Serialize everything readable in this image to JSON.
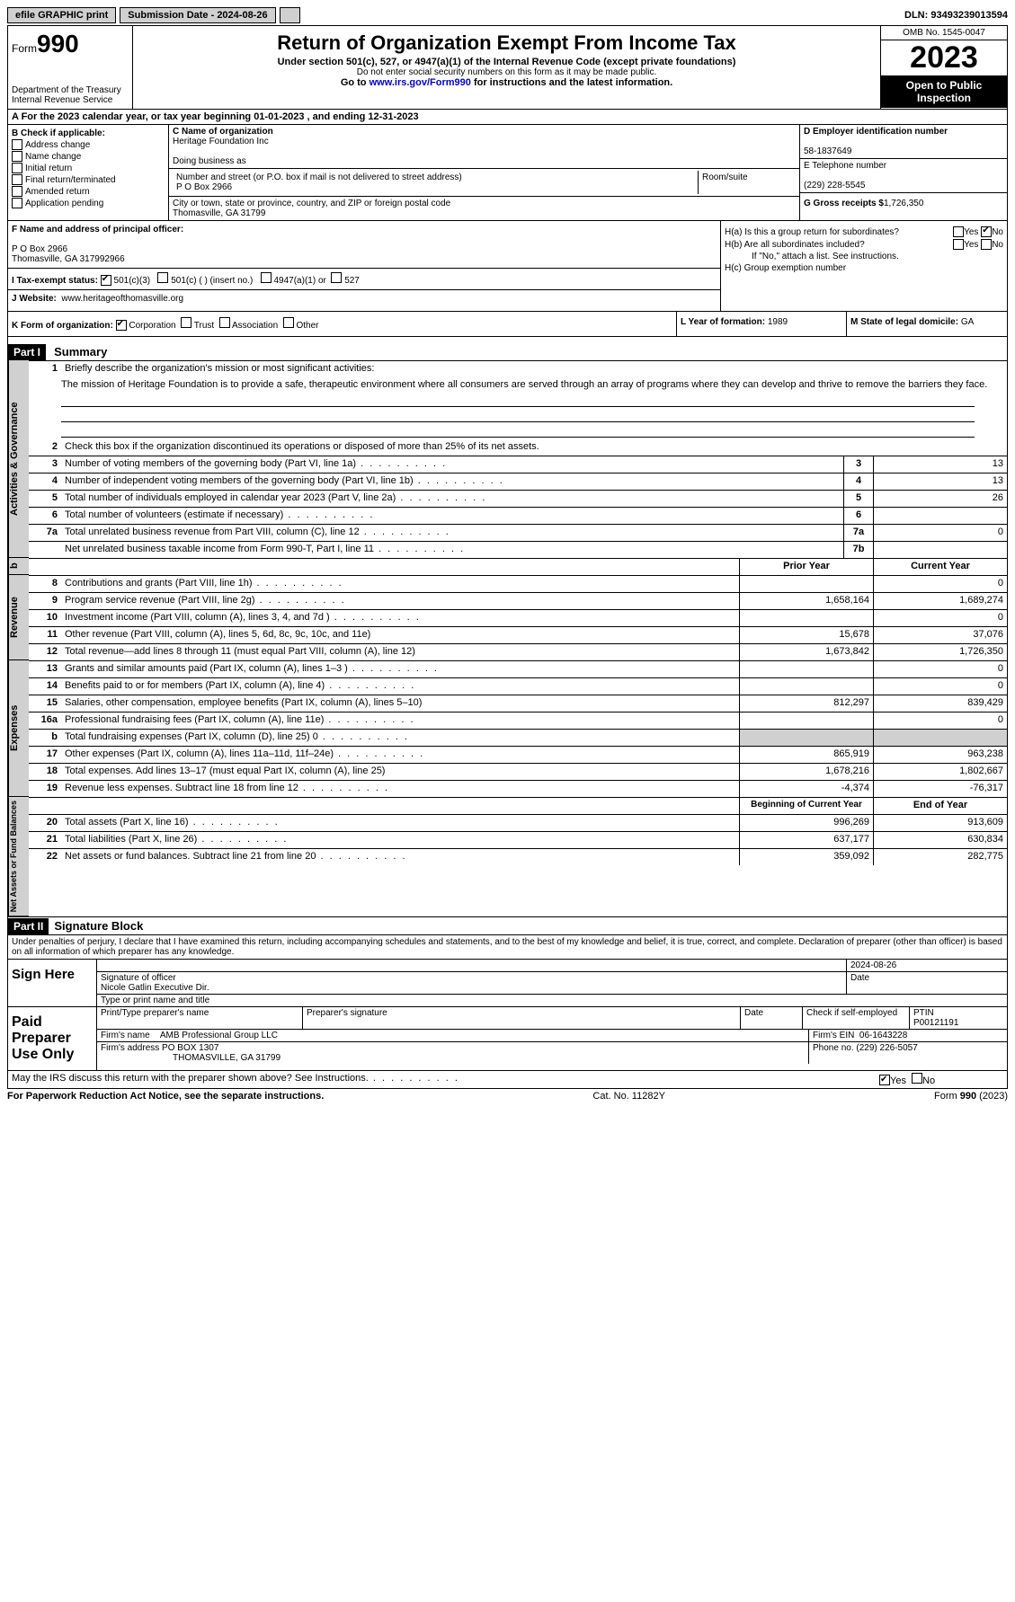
{
  "topbar": {
    "efile": "efile GRAPHIC print",
    "submission_label": "Submission Date - 2024-08-26",
    "dln": "DLN: 93493239013594"
  },
  "header": {
    "form_label": "Form",
    "form_num": "990",
    "dept": "Department of the Treasury\nInternal Revenue Service",
    "title": "Return of Organization Exempt From Income Tax",
    "sub1": "Under section 501(c), 527, or 4947(a)(1) of the Internal Revenue Code (except private foundations)",
    "sub2": "Do not enter social security numbers on this form as it may be made public.",
    "sub3_pre": "Go to ",
    "sub3_link": "www.irs.gov/Form990",
    "sub3_post": " for instructions and the latest information.",
    "omb": "OMB No. 1545-0047",
    "year": "2023",
    "open": "Open to Public Inspection"
  },
  "rowA": "A For the 2023 calendar year, or tax year beginning 01-01-2023    , and ending 12-31-2023",
  "boxB": {
    "title": "B Check if applicable:",
    "items": [
      "Address change",
      "Name change",
      "Initial return",
      "Final return/terminated",
      "Amended return",
      "Application pending"
    ]
  },
  "boxC": {
    "name_label": "C Name of organization",
    "name": "Heritage Foundation Inc",
    "dba_label": "Doing business as",
    "addr_label": "Number and street (or P.O. box if mail is not delivered to street address)",
    "room_label": "Room/suite",
    "addr": "P O Box 2966",
    "city_label": "City or town, state or province, country, and ZIP or foreign postal code",
    "city": "Thomasville, GA  31799"
  },
  "boxD": {
    "label": "D Employer identification number",
    "ein": "58-1837649",
    "tel_label": "E Telephone number",
    "tel": "(229) 228-5545",
    "gross_label": "G Gross receipts $",
    "gross": "1,726,350"
  },
  "boxF": {
    "label": "F  Name and address of principal officer:",
    "line1": "P O Box 2966",
    "line2": "Thomasville, GA  317992966"
  },
  "boxH": {
    "a": "H(a)  Is this a group return for subordinates?",
    "b": "H(b)  Are all subordinates included?",
    "b_note": "If \"No,\" attach a list. See instructions.",
    "c": "H(c)  Group exemption number",
    "yes": "Yes",
    "no": "No"
  },
  "rowI": {
    "label": "I   Tax-exempt status:",
    "o1": "501(c)(3)",
    "o2": "501(c) (  ) (insert no.)",
    "o3": "4947(a)(1) or",
    "o4": "527"
  },
  "rowJ": {
    "label": "J   Website:",
    "val": "www.heritageofthomasville.org"
  },
  "rowK": {
    "label": "K Form of organization:",
    "o1": "Corporation",
    "o2": "Trust",
    "o3": "Association",
    "o4": "Other"
  },
  "rowL": {
    "label": "L Year of formation:",
    "val": "1989"
  },
  "rowM": {
    "label": "M State of legal domicile:",
    "val": "GA"
  },
  "part1": {
    "header": "Part I",
    "title": "Summary"
  },
  "summary": {
    "l1_label": "Briefly describe the organization's mission or most significant activities:",
    "l1_text": "The mission of Heritage Foundation is to provide a safe, therapeutic environment where all consumers are served through an array of programs where they can develop and thrive to remove the barriers they face.",
    "l2": "Check this box      if the organization discontinued its operations or disposed of more than 25% of its net assets.",
    "lines_top": [
      {
        "n": "3",
        "d": "Number of voting members of the governing body (Part VI, line 1a)",
        "box": "3",
        "v": "13"
      },
      {
        "n": "4",
        "d": "Number of independent voting members of the governing body (Part VI, line 1b)",
        "box": "4",
        "v": "13"
      },
      {
        "n": "5",
        "d": "Total number of individuals employed in calendar year 2023 (Part V, line 2a)",
        "box": "5",
        "v": "26"
      },
      {
        "n": "6",
        "d": "Total number of volunteers (estimate if necessary)",
        "box": "6",
        "v": ""
      },
      {
        "n": "7a",
        "d": "Total unrelated business revenue from Part VIII, column (C), line 12",
        "box": "7a",
        "v": "0"
      },
      {
        "n": "",
        "d": "Net unrelated business taxable income from Form 990-T, Part I, line 11",
        "box": "7b",
        "v": ""
      }
    ],
    "col_prior": "Prior Year",
    "col_current": "Current Year",
    "revenue": [
      {
        "n": "8",
        "d": "Contributions and grants (Part VIII, line 1h)",
        "p": "",
        "c": "0"
      },
      {
        "n": "9",
        "d": "Program service revenue (Part VIII, line 2g)",
        "p": "1,658,164",
        "c": "1,689,274"
      },
      {
        "n": "10",
        "d": "Investment income (Part VIII, column (A), lines 3, 4, and 7d )",
        "p": "",
        "c": "0"
      },
      {
        "n": "11",
        "d": "Other revenue (Part VIII, column (A), lines 5, 6d, 8c, 9c, 10c, and 11e)",
        "p": "15,678",
        "c": "37,076"
      },
      {
        "n": "12",
        "d": "Total revenue—add lines 8 through 11 (must equal Part VIII, column (A), line 12)",
        "p": "1,673,842",
        "c": "1,726,350"
      }
    ],
    "expenses": [
      {
        "n": "13",
        "d": "Grants and similar amounts paid (Part IX, column (A), lines 1–3 )",
        "p": "",
        "c": "0"
      },
      {
        "n": "14",
        "d": "Benefits paid to or for members (Part IX, column (A), line 4)",
        "p": "",
        "c": "0"
      },
      {
        "n": "15",
        "d": "Salaries, other compensation, employee benefits (Part IX, column (A), lines 5–10)",
        "p": "812,297",
        "c": "839,429"
      },
      {
        "n": "16a",
        "d": "Professional fundraising fees (Part IX, column (A), line 11e)",
        "p": "",
        "c": "0"
      },
      {
        "n": "b",
        "d": "Total fundraising expenses (Part IX, column (D), line 25) 0",
        "p": "gray",
        "c": "gray"
      },
      {
        "n": "17",
        "d": "Other expenses (Part IX, column (A), lines 11a–11d, 11f–24e)",
        "p": "865,919",
        "c": "963,238"
      },
      {
        "n": "18",
        "d": "Total expenses. Add lines 13–17 (must equal Part IX, column (A), line 25)",
        "p": "1,678,216",
        "c": "1,802,667"
      },
      {
        "n": "19",
        "d": "Revenue less expenses. Subtract line 18 from line 12",
        "p": "-4,374",
        "c": "-76,317"
      }
    ],
    "col_begin": "Beginning of Current Year",
    "col_end": "End of Year",
    "netassets": [
      {
        "n": "20",
        "d": "Total assets (Part X, line 16)",
        "p": "996,269",
        "c": "913,609"
      },
      {
        "n": "21",
        "d": "Total liabilities (Part X, line 26)",
        "p": "637,177",
        "c": "630,834"
      },
      {
        "n": "22",
        "d": "Net assets or fund balances. Subtract line 21 from line 20",
        "p": "359,092",
        "c": "282,775"
      }
    ],
    "tab_ag": "Activities & Governance",
    "tab_rev": "Revenue",
    "tab_exp": "Expenses",
    "tab_net": "Net Assets or Fund Balances"
  },
  "part2": {
    "header": "Part II",
    "title": "Signature Block"
  },
  "declaration": "Under penalties of perjury, I declare that I have examined this return, including accompanying schedules and statements, and to the best of my knowledge and belief, it is true, correct, and complete. Declaration of preparer (other than officer) is based on all information of which preparer has any knowledge.",
  "sign": {
    "here": "Sign Here",
    "sig_officer": "Signature of officer",
    "officer_name": "Nicole Gatlin  Executive Dir.",
    "type_name": "Type or print name and title",
    "date_label": "Date",
    "date": "2024-08-26"
  },
  "preparer": {
    "title": "Paid Preparer Use Only",
    "print_label": "Print/Type preparer's name",
    "sig_label": "Preparer's signature",
    "check_label": "Check        if self-employed",
    "ptin_label": "PTIN",
    "ptin": "P00121191",
    "firm_name_label": "Firm's name",
    "firm_name": "AMB Professional Group LLC",
    "firm_ein_label": "Firm's EIN",
    "firm_ein": "06-1643228",
    "firm_addr_label": "Firm's address",
    "firm_addr1": "PO BOX 1307",
    "firm_addr2": "THOMASVILLE, GA  31799",
    "phone_label": "Phone no.",
    "phone": "(229) 226-5057"
  },
  "may_discuss": "May the IRS discuss this return with the preparer shown above? See Instructions.",
  "footer": {
    "left": "For Paperwork Reduction Act Notice, see the separate instructions.",
    "mid": "Cat. No. 11282Y",
    "right": "Form 990 (2023)"
  }
}
